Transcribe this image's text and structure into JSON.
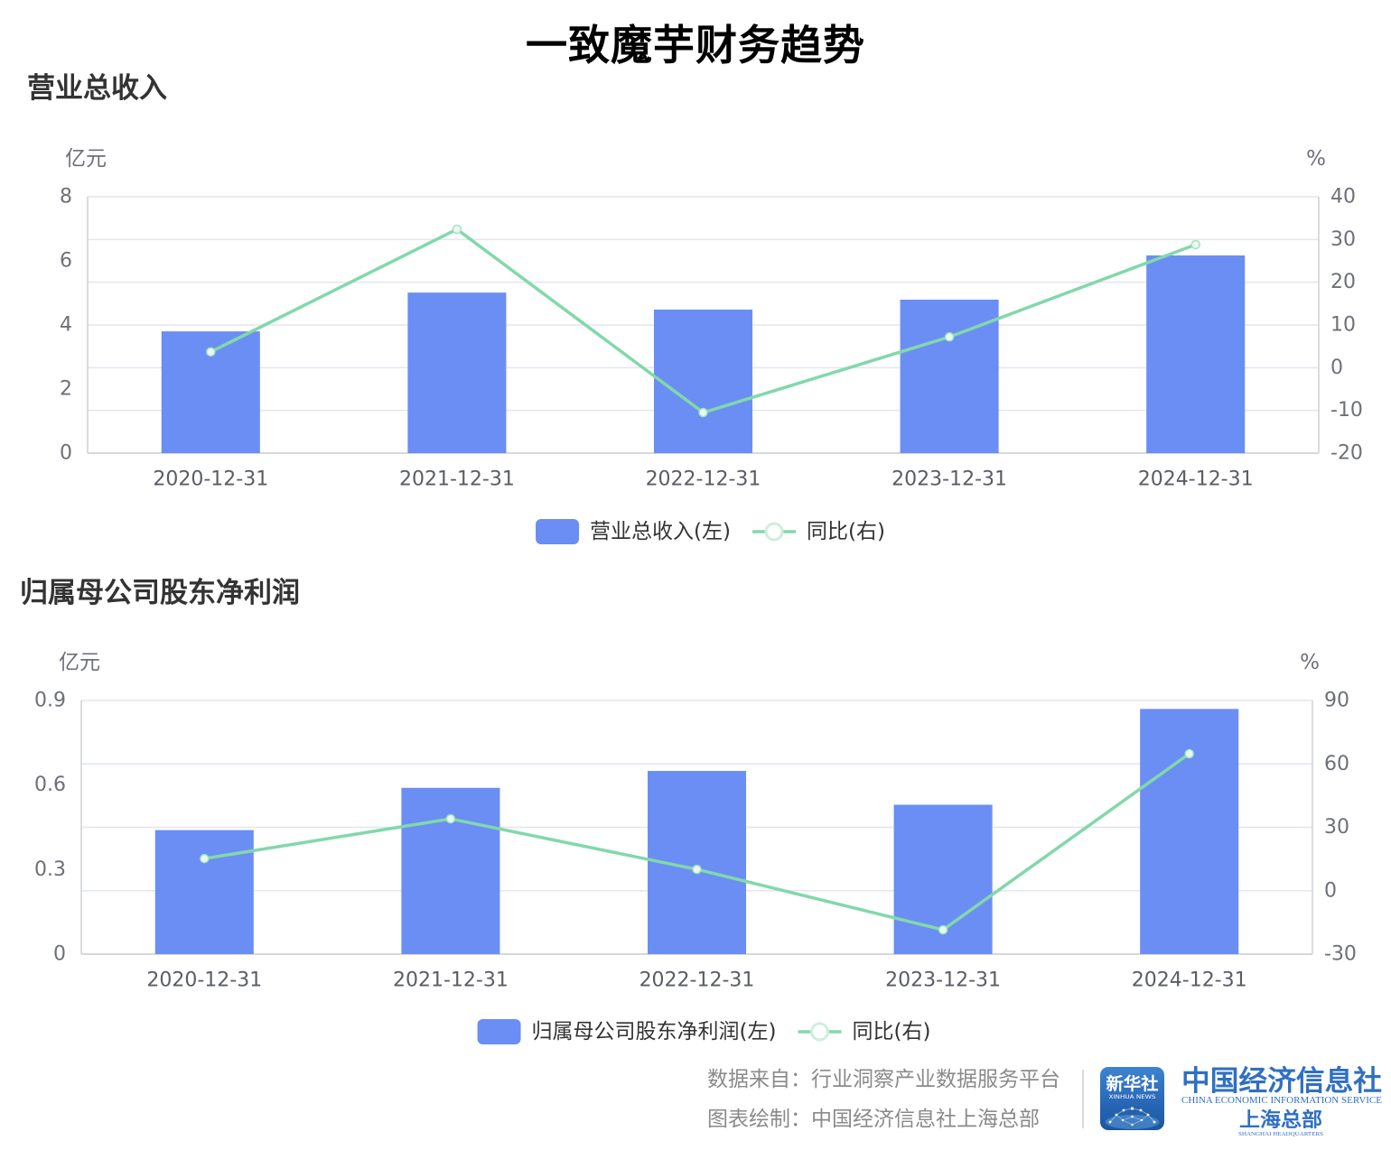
{
  "title": "一致魔芋财务趋势",
  "colors": {
    "bar": "#6a8ef3",
    "line": "#82d8aa",
    "brand": "#2f70c2"
  },
  "chart_data": [
    {
      "type": "bar",
      "title": "营业总收入",
      "categories": [
        "2020-12-31",
        "2021-12-31",
        "2022-12-31",
        "2023-12-31",
        "2024-12-31"
      ],
      "y_left": {
        "unit": "亿元",
        "ticks": [
          0,
          2,
          4,
          6,
          8
        ],
        "range": [
          0,
          8
        ]
      },
      "y_right": {
        "unit": "%",
        "ticks": [
          -20,
          -10,
          0,
          10,
          20,
          30,
          40
        ],
        "range": [
          -20,
          40
        ]
      },
      "series": [
        {
          "name": "营业总收入(左)",
          "type": "bar",
          "y_axis": "left",
          "values": [
            3.8,
            5.01,
            4.48,
            4.79,
            6.17
          ]
        },
        {
          "name": "同比(右)",
          "type": "line",
          "y_axis": "right",
          "values": [
            3.7,
            32.4,
            -10.5,
            7.2,
            28.8
          ]
        }
      ],
      "grid": true,
      "legend_position": "bottom"
    },
    {
      "type": "bar",
      "title": "归属母公司股东净利润",
      "categories": [
        "2020-12-31",
        "2021-12-31",
        "2022-12-31",
        "2023-12-31",
        "2024-12-31"
      ],
      "y_left": {
        "unit": "亿元",
        "ticks": [
          0,
          0.3,
          0.6,
          0.9
        ],
        "range": [
          0,
          0.9
        ]
      },
      "y_right": {
        "unit": "%",
        "ticks": [
          -30,
          0,
          30,
          60,
          90
        ],
        "range": [
          -30,
          90
        ]
      },
      "series": [
        {
          "name": "归属母公司股东净利润(左)",
          "type": "bar",
          "y_axis": "left",
          "values": [
            0.44,
            0.59,
            0.65,
            0.53,
            0.87
          ]
        },
        {
          "name": "同比(右)",
          "type": "line",
          "y_axis": "right",
          "values": [
            15.2,
            34.0,
            10.1,
            -18.5,
            64.8
          ]
        }
      ],
      "grid": true,
      "legend_position": "bottom"
    }
  ],
  "footer": {
    "source": "数据来自：行业洞察产业数据服务平台",
    "credit": "图表绘制：中国经济信息社上海总部"
  },
  "logo": {
    "xinhua_cn": "新华社",
    "xinhua_en": "XINHUA NEWS",
    "ceis_cn": "中国经济信息社",
    "ceis_en": "CHINA ECONOMIC INFORMATION SERVICE",
    "branch_cn": "上海总部",
    "branch_en": "SHANGHAI HEADQUARTERS"
  }
}
